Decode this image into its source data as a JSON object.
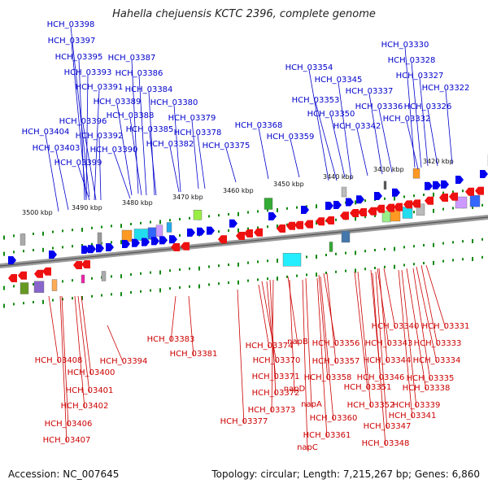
{
  "title": "Hahella chejuensis KCTC 2396, complete genome",
  "footer": {
    "accession": "Accession: NC_007645",
    "summary": "Topology: circular; Length: 7,215,267 bp; Genes: 6,860"
  },
  "colors": {
    "forward": "#0000cc",
    "reverse": "#cc0000",
    "backbone": "#808080",
    "tick": "#118811"
  },
  "kbp_labels": [
    "3500 kbp",
    "3490 kbp",
    "3480 kbp",
    "3470 kbp",
    "3460 kbp",
    "3450 kbp",
    "3440 kbp",
    "3430 kbp",
    "3420 kbp"
  ],
  "forward_genes": [
    "HCH_03398",
    "HCH_03397",
    "HCH_03395",
    "HCH_03393",
    "HCH_03391",
    "HCH_03396",
    "HCH_03392",
    "HCH_03404",
    "HCH_03403",
    "HCH_03399",
    "HCH_03387",
    "HCH_03386",
    "HCH_03384",
    "HCH_03389",
    "HCH_03388",
    "HCH_03385",
    "HCH_03390",
    "HCH_03380",
    "HCH_03379",
    "HCH_03378",
    "HCH_03382",
    "HCH_03375",
    "HCH_03368",
    "HCH_03359",
    "HCH_03354",
    "HCH_03345",
    "HCH_03353",
    "HCH_03350",
    "HCH_03342",
    "HCH_03337",
    "HCH_03336",
    "HCH_03332",
    "HCH_03330",
    "HCH_03328",
    "HCH_03327",
    "HCH_03322",
    "HCH_03326"
  ],
  "reverse_genes": [
    "HCH_03408",
    "HCH_03406",
    "HCH_03407",
    "HCH_03400",
    "HCH_03401",
    "HCH_03402",
    "HCH_03394",
    "HCH_03383",
    "HCH_03381",
    "HCH_03374",
    "HCH_03370",
    "HCH_03371",
    "HCH_03372",
    "HCH_03373",
    "HCH_03377",
    "napB",
    "HCH_03356",
    "HCH_03357",
    "HCH_03358",
    "napD",
    "napA",
    "HCH_03360",
    "HCH_03361",
    "napC",
    "HCH_03340",
    "HCH_03331",
    "HCH_03343",
    "HCH_03333",
    "HCH_03344",
    "HCH_03334",
    "HCH_03346",
    "HCH_03335",
    "HCH_03351",
    "HCH_03338",
    "HCH_03352",
    "HCH_03339",
    "HCH_03341",
    "HCH_03347",
    "HCH_03348"
  ]
}
